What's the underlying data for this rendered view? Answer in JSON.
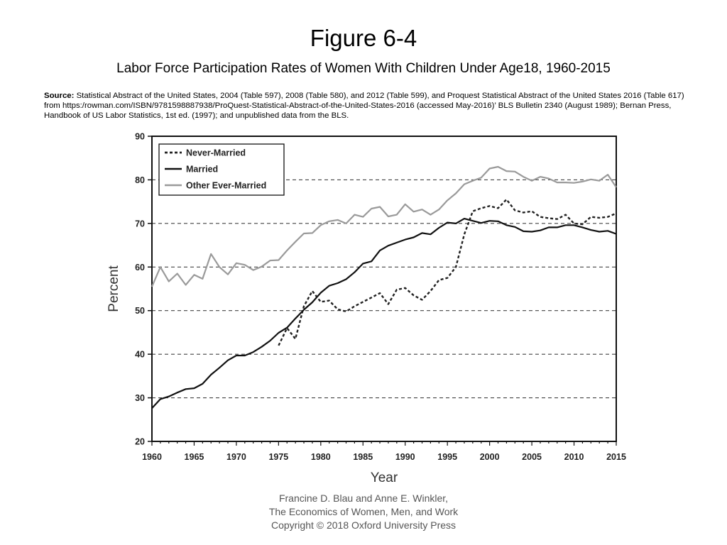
{
  "header": {
    "figure_number": "Figure 6-4",
    "subtitle": "Labor Force Participation Rates of Women With Children Under Age18, 1960-2015"
  },
  "source": {
    "label": "Source:",
    "text": " Statistical Abstract of the United States, 2004 (Table 597), 2008 (Table 580), and 2012 (Table 599), and Proquest Statistical Abstract of the United States 2016 (Table 617) from https:/rowman.com/ISBN/9781598887938/ProQuest-Statistical-Abstract-of-the-United-States-2016 (accessed May-2016)’ BLS Bulletin 2340 (August 1989); Bernan Press, Handbook of US Labor Statistics, 1st ed. (1997); and unpublished data from the BLS."
  },
  "footer": {
    "line1": "Francine D. Blau and Anne E. Winkler,",
    "line2": "The Economics of Women, Men, and Work",
    "line3": "Copyright © 2018 Oxford University Press"
  },
  "chart_data": {
    "type": "line",
    "xlabel": "Year",
    "ylabel": "Percent",
    "xlim": [
      1960,
      2015
    ],
    "ylim": [
      20,
      90
    ],
    "xticks": [
      "1960",
      "1965",
      "1970",
      "1975",
      "1980",
      "1985",
      "1990",
      "1995",
      "2000",
      "2005",
      "2010",
      "2015"
    ],
    "yticks": [
      "20",
      "30",
      "40",
      "50",
      "60",
      "70",
      "80",
      "90"
    ],
    "grid": "horizontal dashed at 30, 40, 50, 60, 70, 80",
    "legend_position": "top-left",
    "series": [
      {
        "name": "Never-Married",
        "style": "dotted",
        "color": "#222222",
        "x": [
          1975,
          1976,
          1977,
          1978,
          1979,
          1980,
          1981,
          1982,
          1983,
          1984,
          1985,
          1986,
          1987,
          1988,
          1989,
          1990,
          1991,
          1992,
          1993,
          1994,
          1995,
          1996,
          1997,
          1998,
          1999,
          2000,
          2001,
          2002,
          2003,
          2004,
          2005,
          2006,
          2007,
          2008,
          2009,
          2010,
          2011,
          2012,
          2013,
          2014,
          2015
        ],
        "y": [
          42.0,
          46.0,
          43.5,
          51.0,
          54.5,
          52.0,
          52.3,
          50.3,
          49.8,
          51.0,
          52.0,
          53.0,
          54.0,
          51.5,
          54.8,
          55.2,
          53.5,
          52.5,
          54.5,
          57.0,
          57.5,
          60.0,
          67.5,
          72.8,
          73.5,
          74.0,
          73.5,
          75.5,
          73.0,
          72.5,
          72.8,
          71.5,
          71.2,
          71.0,
          72.0,
          70.0,
          69.8,
          71.5,
          71.3,
          71.5,
          72.3
        ]
      },
      {
        "name": "Married",
        "style": "solid",
        "color": "#111111",
        "x": [
          1960,
          1961,
          1962,
          1963,
          1964,
          1965,
          1966,
          1967,
          1968,
          1969,
          1970,
          1971,
          1972,
          1973,
          1974,
          1975,
          1976,
          1977,
          1978,
          1979,
          1980,
          1981,
          1982,
          1983,
          1984,
          1985,
          1986,
          1987,
          1988,
          1989,
          1990,
          1991,
          1992,
          1993,
          1994,
          1995,
          1996,
          1997,
          1998,
          1999,
          2000,
          2001,
          2002,
          2003,
          2004,
          2005,
          2006,
          2007,
          2008,
          2009,
          2010,
          2011,
          2012,
          2013,
          2014,
          2015
        ],
        "y": [
          27.6,
          29.7,
          30.3,
          31.2,
          32.0,
          32.2,
          33.2,
          35.3,
          36.9,
          38.6,
          39.7,
          39.7,
          40.5,
          41.7,
          43.1,
          44.9,
          46.1,
          48.2,
          50.2,
          51.9,
          54.1,
          55.7,
          56.3,
          57.2,
          58.8,
          60.8,
          61.3,
          63.8,
          64.9,
          65.6,
          66.3,
          66.8,
          67.8,
          67.5,
          69.0,
          70.2,
          70.0,
          71.1,
          70.6,
          70.1,
          70.6,
          70.5,
          69.6,
          69.2,
          68.2,
          68.1,
          68.4,
          69.1,
          69.1,
          69.6,
          69.6,
          69.1,
          68.5,
          68.1,
          68.3,
          67.6
        ]
      },
      {
        "name": "Other Ever-Married",
        "style": "solid",
        "color": "#9a9a9a",
        "x": [
          1960,
          1961,
          1962,
          1963,
          1964,
          1965,
          1966,
          1967,
          1968,
          1969,
          1970,
          1971,
          1972,
          1973,
          1974,
          1975,
          1976,
          1977,
          1978,
          1979,
          1980,
          1981,
          1982,
          1983,
          1984,
          1985,
          1986,
          1987,
          1988,
          1989,
          1990,
          1991,
          1992,
          1993,
          1994,
          1995,
          1996,
          1997,
          1998,
          1999,
          2000,
          2001,
          2002,
          2003,
          2004,
          2005,
          2006,
          2007,
          2008,
          2009,
          2010,
          2011,
          2012,
          2013,
          2014,
          2015
        ],
        "y": [
          55.5,
          60.0,
          56.7,
          58.5,
          55.9,
          58.2,
          57.3,
          63.0,
          60.0,
          58.3,
          60.9,
          60.5,
          59.3,
          60.1,
          61.5,
          61.6,
          63.8,
          65.8,
          67.7,
          67.8,
          69.6,
          70.5,
          70.8,
          70.0,
          72.0,
          71.5,
          73.4,
          73.8,
          71.6,
          72.0,
          74.4,
          72.7,
          73.2,
          72.0,
          73.2,
          75.3,
          76.9,
          79.0,
          79.8,
          80.5,
          82.6,
          83.0,
          82.0,
          81.9,
          80.7,
          79.8,
          80.7,
          80.3,
          79.4,
          79.4,
          79.3,
          79.6,
          80.1,
          79.8,
          81.2,
          78.3
        ]
      }
    ]
  }
}
